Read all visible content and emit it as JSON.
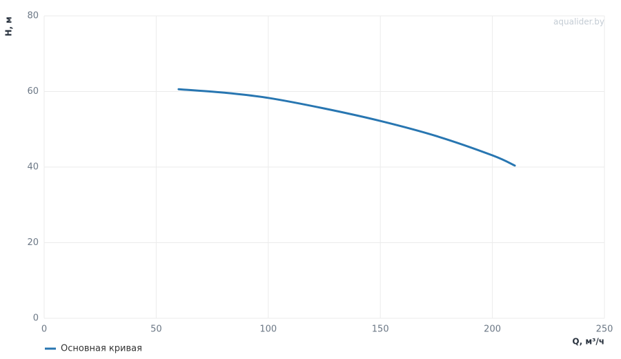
{
  "chart_data": {
    "type": "line",
    "watermark": "aqualider.by",
    "xlabel": "Q, м³/ч",
    "ylabel": "H, м",
    "x": [
      60,
      80,
      100,
      125,
      150,
      175,
      200,
      210
    ],
    "series": [
      {
        "name": "Основная кривая",
        "color": "#2876b1",
        "values": [
          60.6,
          59.7,
          58.3,
          55.5,
          52.2,
          48.2,
          43.1,
          40.4
        ]
      }
    ],
    "xlim": [
      0,
      250
    ],
    "xticks": [
      0,
      50,
      100,
      150,
      200,
      250
    ],
    "ylim": [
      0,
      80
    ],
    "yticks": [
      0,
      20,
      40,
      60,
      80
    ],
    "grid": true,
    "legend": "bottom-left"
  }
}
